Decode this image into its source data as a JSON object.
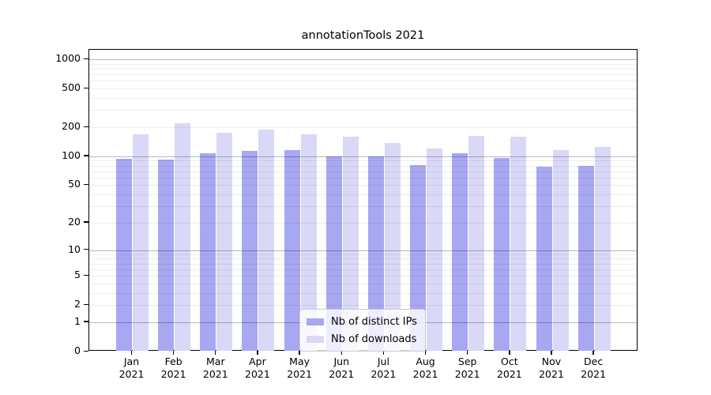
{
  "chart_data": {
    "type": "bar",
    "title": "annotationTools 2021",
    "categories": [
      {
        "month": "Jan",
        "year": "2021"
      },
      {
        "month": "Feb",
        "year": "2021"
      },
      {
        "month": "Mar",
        "year": "2021"
      },
      {
        "month": "Apr",
        "year": "2021"
      },
      {
        "month": "May",
        "year": "2021"
      },
      {
        "month": "Jun",
        "year": "2021"
      },
      {
        "month": "Jul",
        "year": "2021"
      },
      {
        "month": "Aug",
        "year": "2021"
      },
      {
        "month": "Sep",
        "year": "2021"
      },
      {
        "month": "Oct",
        "year": "2021"
      },
      {
        "month": "Nov",
        "year": "2021"
      },
      {
        "month": "Dec",
        "year": "2021"
      }
    ],
    "series": [
      {
        "name": "Nb of distinct IPs",
        "color": "#a8a7f2",
        "values": [
          94,
          93,
          107,
          114,
          115,
          100,
          99,
          81,
          108,
          96,
          78,
          79
        ]
      },
      {
        "name": "Nb of downloads",
        "color": "#d9d8f7",
        "values": [
          169,
          220,
          176,
          188,
          169,
          160,
          137,
          120,
          164,
          160,
          115,
          125
        ]
      }
    ],
    "yscale": "log1p",
    "y_tick_values": [
      0,
      1,
      2,
      5,
      10,
      20,
      50,
      100,
      200,
      500,
      1000
    ],
    "y_tick_labels": [
      "0",
      "1",
      "2",
      "5",
      "10",
      "20",
      "50",
      "100",
      "200",
      "500",
      "1000"
    ],
    "y_major_grid_values": [
      1,
      10,
      100,
      1000
    ],
    "ylim": [
      0,
      1253
    ],
    "xlabel": "",
    "ylabel": "",
    "grid": "horizontal major+minor, drawn over bars",
    "legend_position": "lower center"
  }
}
